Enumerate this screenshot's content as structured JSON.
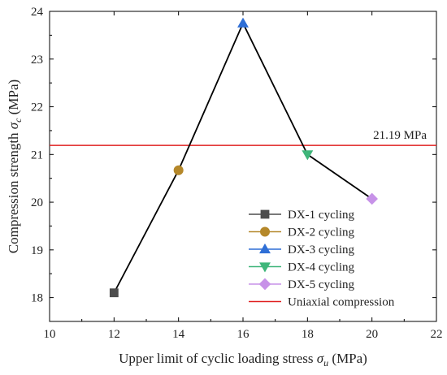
{
  "chart_data": {
    "type": "line",
    "xlabel_main": "Upper limit of cyclic loading stress ",
    "xlabel_symbol": "σ",
    "xlabel_sub": "u",
    "xlabel_unit": " (MPa)",
    "ylabel_main": "Compression strength ",
    "ylabel_symbol": "σ",
    "ylabel_sub": "c",
    "ylabel_unit": " (MPa)",
    "xlim": [
      10,
      22
    ],
    "ylim": [
      17.5,
      24
    ],
    "xticks": [
      10,
      12,
      14,
      16,
      18,
      20,
      22
    ],
    "yticks": [
      18,
      19,
      20,
      21,
      22,
      23,
      24
    ],
    "line_color": "#000000",
    "series": [
      {
        "name": "DX-1 cycling",
        "x": 12,
        "y": 18.1,
        "marker": "square",
        "color": "#4d4d4d"
      },
      {
        "name": "DX-2 cycling",
        "x": 14,
        "y": 20.67,
        "marker": "circle",
        "color": "#b5882a"
      },
      {
        "name": "DX-3 cycling",
        "x": 16,
        "y": 23.75,
        "marker": "triangle-up",
        "color": "#2f6fd6"
      },
      {
        "name": "DX-4 cycling",
        "x": 18,
        "y": 21.0,
        "marker": "triangle-down",
        "color": "#3fb67a"
      },
      {
        "name": "DX-5 cycling",
        "x": 20,
        "y": 20.07,
        "marker": "diamond",
        "color": "#c792e8"
      }
    ],
    "reference_line": {
      "name": "Uniaxial compression",
      "y": 21.19,
      "label": "21.19 MPa",
      "color": "#e02020"
    },
    "legend_position": "lower-right",
    "grid": false
  }
}
